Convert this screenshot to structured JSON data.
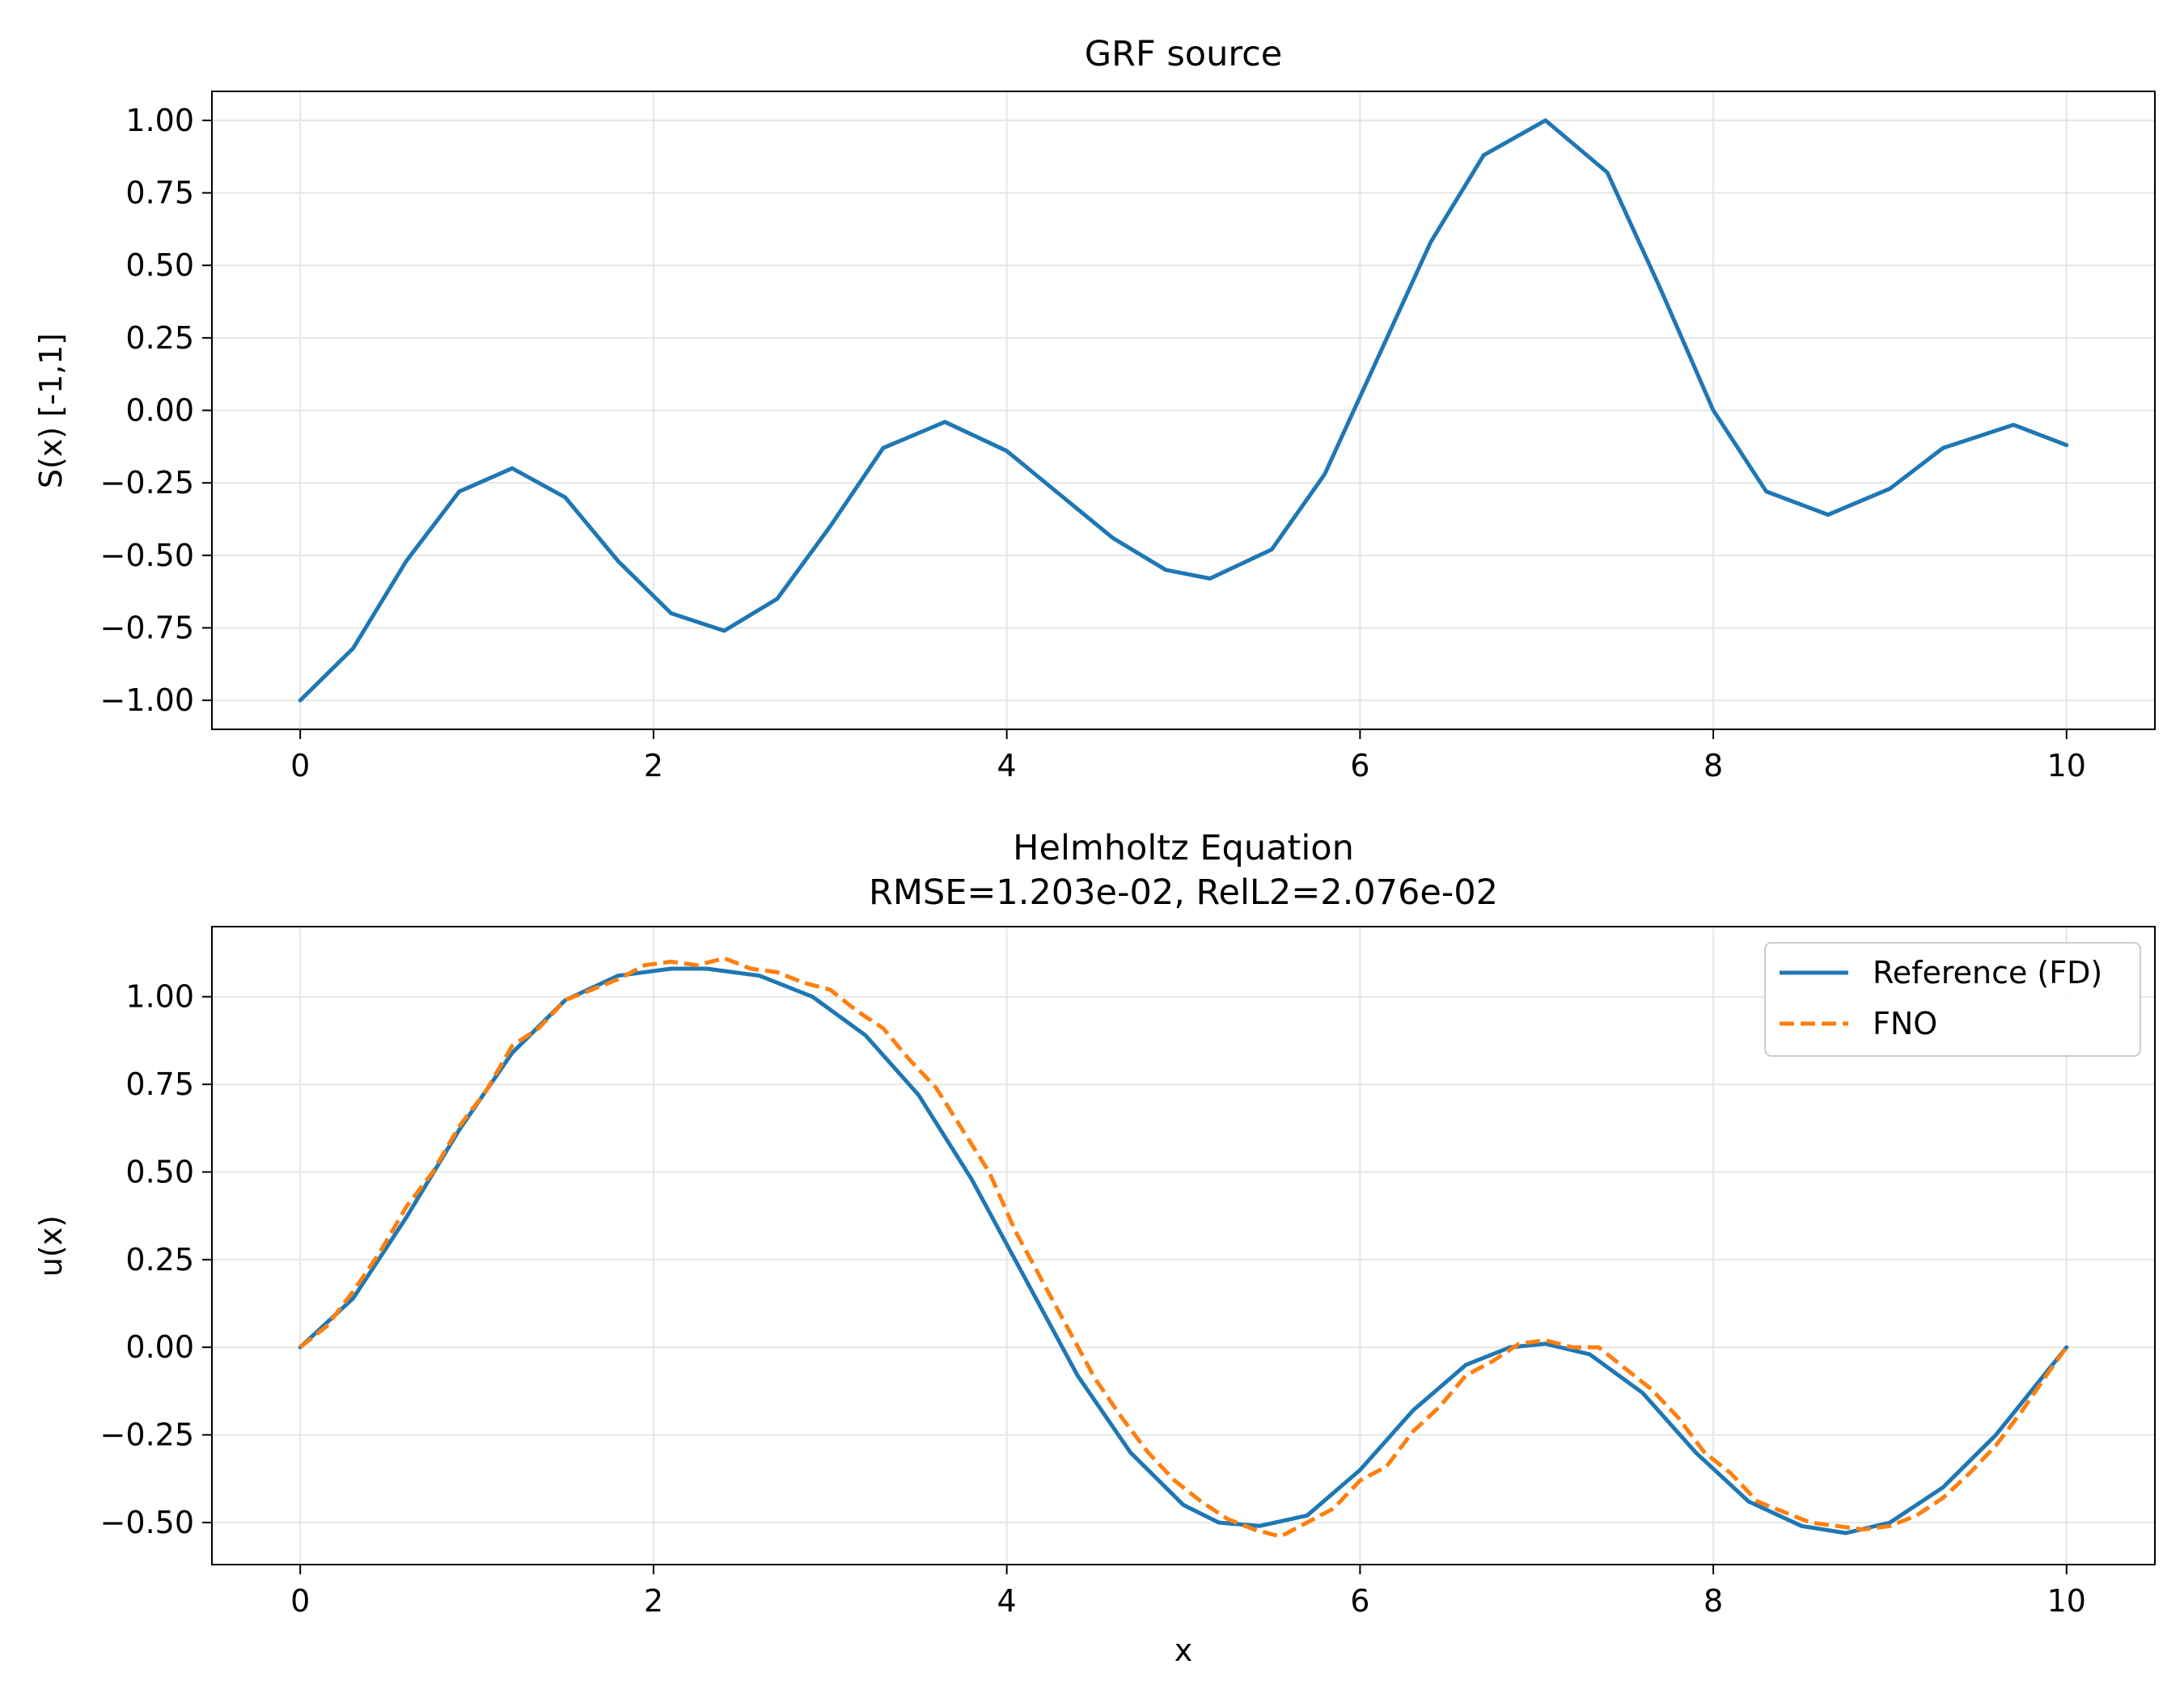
{
  "chart_data": [
    {
      "type": "line",
      "title": "GRF source",
      "subtitle": "",
      "xlabel": "",
      "ylabel": "S(x)  [-1,1]",
      "xlim": [
        -0.5,
        10.5
      ],
      "ylim": [
        -1.1,
        1.1
      ],
      "xticks": [
        0,
        2,
        4,
        6,
        8,
        10
      ],
      "xtick_labels": [
        "0",
        "2",
        "4",
        "6",
        "8",
        "10"
      ],
      "yticks": [
        -1.0,
        -0.75,
        -0.5,
        -0.25,
        0.0,
        0.25,
        0.5,
        0.75,
        1.0
      ],
      "ytick_labels": [
        "−1.00",
        "−0.75",
        "−0.50",
        "−0.25",
        "0.00",
        "0.25",
        "0.50",
        "0.75",
        "1.00"
      ],
      "grid": true,
      "legend": null,
      "series": [
        {
          "name": "",
          "color": "#1f77b4",
          "dash": "solid",
          "x": [
            0,
            0.3,
            0.6,
            0.9,
            1.2,
            1.5,
            1.8,
            2.1,
            2.4,
            2.7,
            3.0,
            3.3,
            3.65,
            4.0,
            4.3,
            4.6,
            4.9,
            5.15,
            5.5,
            5.8,
            6.1,
            6.4,
            6.7,
            7.05,
            7.4,
            7.7,
            8.0,
            8.3,
            8.65,
            9.0,
            9.3,
            9.7,
            10.0
          ],
          "y": [
            -1.0,
            -0.82,
            -0.52,
            -0.28,
            -0.2,
            -0.3,
            -0.52,
            -0.7,
            -0.76,
            -0.65,
            -0.4,
            -0.13,
            -0.04,
            -0.14,
            -0.29,
            -0.44,
            -0.55,
            -0.58,
            -0.48,
            -0.22,
            0.18,
            0.58,
            0.88,
            1.0,
            0.82,
            0.42,
            0.0,
            -0.28,
            -0.36,
            -0.27,
            -0.13,
            -0.05,
            -0.12
          ]
        }
      ]
    },
    {
      "type": "line",
      "title": "Helmholtz Equation",
      "subtitle": "RMSE=1.203e-02,  RelL2=2.076e-02",
      "xlabel": "x",
      "ylabel": "u(x)",
      "xlim": [
        -0.5,
        10.5
      ],
      "ylim": [
        -0.62,
        1.2
      ],
      "xticks": [
        0,
        2,
        4,
        6,
        8,
        10
      ],
      "xtick_labels": [
        "0",
        "2",
        "4",
        "6",
        "8",
        "10"
      ],
      "yticks": [
        -0.5,
        -0.25,
        0.0,
        0.25,
        0.5,
        0.75,
        1.0
      ],
      "ytick_labels": [
        "−0.50",
        "−0.25",
        "0.00",
        "0.25",
        "0.50",
        "0.75",
        "1.00"
      ],
      "grid": true,
      "legend": "top-right",
      "series": [
        {
          "name": "Reference (FD)",
          "color": "#1f77b4",
          "dash": "solid",
          "x": [
            0,
            0.3,
            0.6,
            0.9,
            1.2,
            1.5,
            1.8,
            2.1,
            2.3,
            2.6,
            2.9,
            3.2,
            3.5,
            3.8,
            4.1,
            4.4,
            4.7,
            5.0,
            5.2,
            5.43,
            5.7,
            6.0,
            6.3,
            6.6,
            6.85,
            7.05,
            7.3,
            7.6,
            7.9,
            8.2,
            8.5,
            8.75,
            9.0,
            9.3,
            9.6,
            10.0
          ],
          "y": [
            0.0,
            0.14,
            0.37,
            0.62,
            0.84,
            0.99,
            1.06,
            1.08,
            1.08,
            1.06,
            1.0,
            0.89,
            0.72,
            0.48,
            0.2,
            -0.08,
            -0.3,
            -0.45,
            -0.5,
            -0.51,
            -0.48,
            -0.35,
            -0.18,
            -0.05,
            0.0,
            0.01,
            -0.02,
            -0.13,
            -0.3,
            -0.44,
            -0.51,
            -0.53,
            -0.5,
            -0.4,
            -0.25,
            0.0
          ]
        },
        {
          "name": "FNO",
          "color": "#ff7f0e",
          "dash": "dashed",
          "x": [
            0,
            0.15,
            0.3,
            0.45,
            0.6,
            0.75,
            0.9,
            1.05,
            1.2,
            1.35,
            1.5,
            1.65,
            1.8,
            1.95,
            2.1,
            2.25,
            2.4,
            2.55,
            2.7,
            2.85,
            3.0,
            3.15,
            3.3,
            3.45,
            3.6,
            3.75,
            3.9,
            4.05,
            4.2,
            4.35,
            4.5,
            4.65,
            4.8,
            4.95,
            5.1,
            5.25,
            5.4,
            5.55,
            5.7,
            5.85,
            6.0,
            6.15,
            6.3,
            6.45,
            6.6,
            6.75,
            6.9,
            7.05,
            7.2,
            7.35,
            7.5,
            7.65,
            7.8,
            7.95,
            8.1,
            8.25,
            8.4,
            8.55,
            8.7,
            8.85,
            9.0,
            9.15,
            9.3,
            9.45,
            9.6,
            9.75,
            9.9,
            10.0
          ],
          "y": [
            0.0,
            0.06,
            0.16,
            0.27,
            0.4,
            0.5,
            0.63,
            0.73,
            0.86,
            0.91,
            0.99,
            1.02,
            1.05,
            1.09,
            1.1,
            1.09,
            1.11,
            1.08,
            1.07,
            1.04,
            1.02,
            0.96,
            0.91,
            0.82,
            0.74,
            0.62,
            0.5,
            0.33,
            0.19,
            0.05,
            -0.09,
            -0.2,
            -0.3,
            -0.38,
            -0.44,
            -0.49,
            -0.52,
            -0.54,
            -0.5,
            -0.46,
            -0.38,
            -0.34,
            -0.24,
            -0.17,
            -0.08,
            -0.04,
            0.01,
            0.02,
            0.0,
            0.0,
            -0.06,
            -0.12,
            -0.2,
            -0.3,
            -0.36,
            -0.44,
            -0.47,
            -0.5,
            -0.51,
            -0.52,
            -0.51,
            -0.48,
            -0.43,
            -0.36,
            -0.28,
            -0.18,
            -0.07,
            0.0
          ]
        }
      ]
    }
  ],
  "style": {
    "grid_color": "#e6e6e6",
    "axis_color": "#000000"
  }
}
